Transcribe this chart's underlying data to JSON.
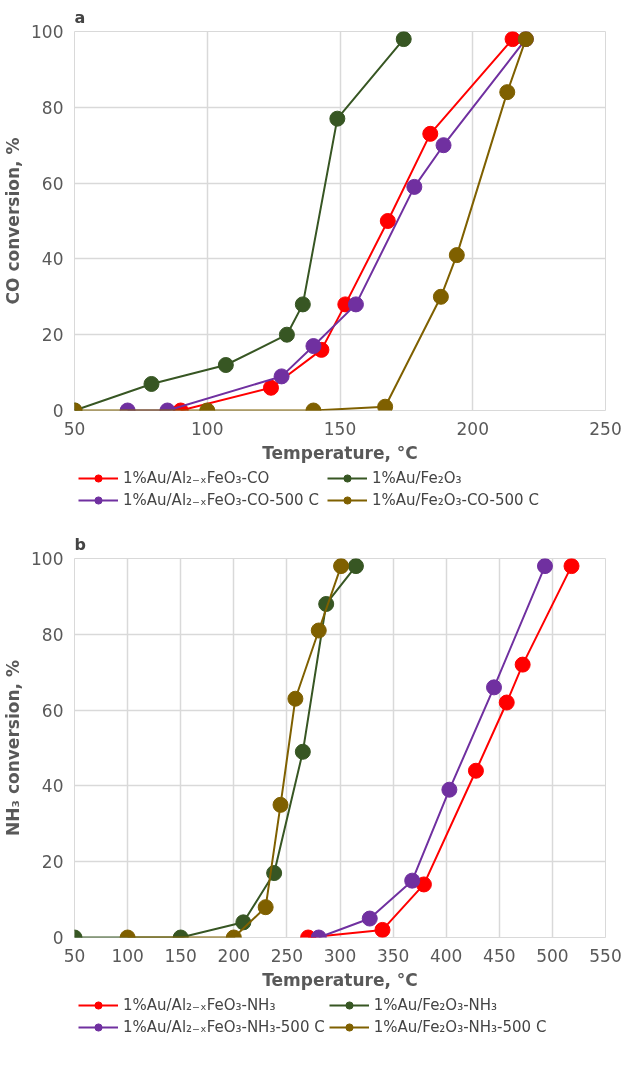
{
  "chart_data": [
    {
      "type": "line",
      "title": "a",
      "xlabel": "Temperature, °C",
      "ylabel": "CO conversion, %",
      "xlim": [
        50,
        250
      ],
      "xticks": [
        50,
        100,
        150,
        200,
        250
      ],
      "ylim": [
        0,
        100
      ],
      "yticks": [
        0,
        20,
        40,
        60,
        80,
        100
      ],
      "grid": true,
      "legend": "bottom",
      "marker": "circle",
      "line_style": "solid",
      "series": [
        {
          "name": "1%Au/Al₂₋ₓFeO₃-CO",
          "color": "#ff0000",
          "x": [
            90,
            124,
            143,
            152,
            168,
            184,
            215
          ],
          "values": [
            0,
            6,
            16,
            28,
            50,
            73,
            98
          ]
        },
        {
          "name": "1%Au/Al₂₋ₓFeO₃-CO-500 C",
          "color": "#7030a0",
          "x": [
            70,
            85,
            128,
            140,
            156,
            178,
            189,
            220
          ],
          "values": [
            0,
            0,
            9,
            17,
            28,
            59,
            70,
            98
          ]
        },
        {
          "name": "1%Au/Fe₂O₃",
          "color": "#375623",
          "x": [
            50,
            79,
            107,
            130,
            136,
            149,
            174
          ],
          "values": [
            0,
            7,
            12,
            20,
            28,
            77,
            98
          ]
        },
        {
          "name": "1%Au/Fe₂O₃-CO-500 C",
          "color": "#7f6000",
          "x": [
            50,
            100,
            140,
            167,
            188,
            194,
            213,
            220
          ],
          "values": [
            0,
            0,
            0,
            1,
            30,
            41,
            84,
            98
          ]
        }
      ]
    },
    {
      "type": "line",
      "title": "b",
      "xlabel": "Temperature, °C",
      "ylabel": "NH₃ conversion, %",
      "xlim": [
        50,
        550
      ],
      "xticks": [
        50,
        100,
        150,
        200,
        250,
        300,
        350,
        400,
        450,
        500,
        550
      ],
      "ylim": [
        0,
        100
      ],
      "yticks": [
        0,
        20,
        40,
        60,
        80,
        100
      ],
      "grid": true,
      "legend": "bottom",
      "marker": "circle",
      "line_style": "solid",
      "series": [
        {
          "name": "1%Au/Al₂₋ₓFeO₃-NH₃",
          "color": "#ff0000",
          "x": [
            270,
            340,
            379,
            428,
            457,
            472,
            518
          ],
          "values": [
            0,
            2,
            14,
            44,
            62,
            72,
            98
          ]
        },
        {
          "name": "1%Au/Al₂₋ₓFeO₃-NH₃-500 C",
          "color": "#7030a0",
          "x": [
            280,
            328,
            368,
            403,
            445,
            493
          ],
          "values": [
            0,
            5,
            15,
            39,
            66,
            98
          ]
        },
        {
          "name": "1%Au/Fe₂O₃-NH₃",
          "color": "#375623",
          "x": [
            50,
            150,
            209,
            238,
            265,
            287,
            315
          ],
          "values": [
            0,
            0,
            4,
            17,
            49,
            88,
            98
          ]
        },
        {
          "name": "1%Au/Fe₂O₃-NH₃-500 C",
          "color": "#7f6000",
          "x": [
            100,
            200,
            230,
            244,
            258,
            280,
            301
          ],
          "values": [
            0,
            0,
            8,
            35,
            63,
            81,
            98
          ]
        }
      ]
    }
  ]
}
